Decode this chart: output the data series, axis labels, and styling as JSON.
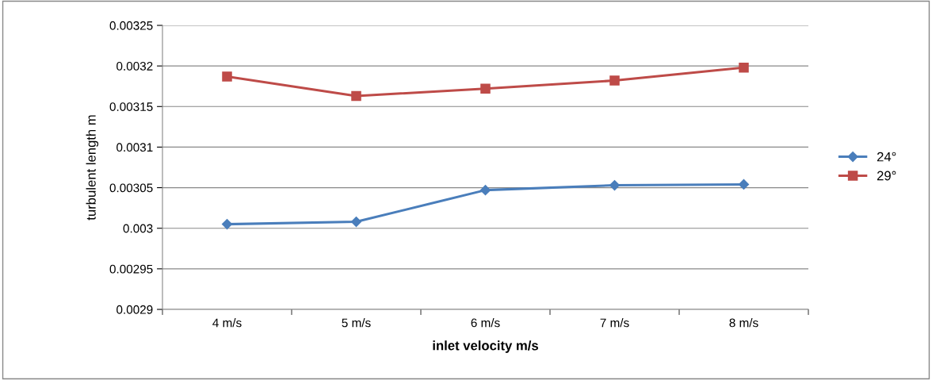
{
  "chart_data": {
    "type": "line",
    "xlabel": "inlet velocity m/s",
    "ylabel": "turbulent length m",
    "categories": [
      "4 m/s",
      "5 m/s",
      "6 m/s",
      "7 m/s",
      "8 m/s"
    ],
    "series": [
      {
        "name": "24°",
        "color": "#4a7ebb",
        "marker": "diamond",
        "values": [
          0.003005,
          0.003008,
          0.003047,
          0.003053,
          0.003054
        ]
      },
      {
        "name": "29°",
        "color": "#be4b48",
        "marker": "square",
        "values": [
          0.003187,
          0.003163,
          0.003172,
          0.003182,
          0.003198
        ]
      }
    ],
    "ylim": [
      0.0029,
      0.00325
    ],
    "yticks": [
      0.0029,
      0.00295,
      0.003,
      0.00305,
      0.0031,
      0.00315,
      0.0032,
      0.00325
    ],
    "grid": "y",
    "legend": "right",
    "line_style": "solid"
  }
}
